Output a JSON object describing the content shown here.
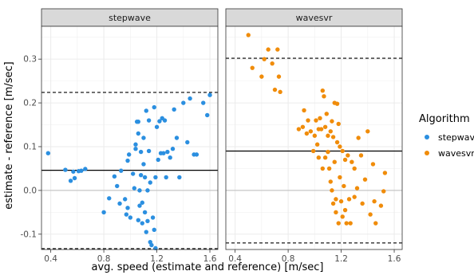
{
  "chart_data": {
    "type": "scatter",
    "panels": [
      "stepwave",
      "wavesvr"
    ],
    "xlabel": "avg. speed (estimate and reference) [m/sec]",
    "ylabel": "estimate - reference [m/sec]",
    "xlim": [
      0.33,
      1.66
    ],
    "ylim": [
      -0.135,
      0.375
    ],
    "xticks": [
      0.4,
      0.8,
      1.2,
      1.6
    ],
    "xtick_labels": [
      "0.4",
      "0.8",
      "1.2",
      "1.6"
    ],
    "yticks": [
      -0.1,
      0.0,
      0.1,
      0.2,
      0.3
    ],
    "ytick_labels": [
      "-0.1",
      "0.0",
      "0.1",
      "0.2",
      "0.3"
    ],
    "grid": true,
    "legend": {
      "title": "Algorithm",
      "placement": "right",
      "entries": [
        {
          "label": "stepwave",
          "color": "#2B8FE0"
        },
        {
          "label": "wavesvr",
          "color": "#F08C0A"
        }
      ]
    },
    "series": [
      {
        "name": "stepwave",
        "panel": 0,
        "color": "#2B8FE0",
        "mean": 0.046,
        "upper": 0.224,
        "lower": -0.133,
        "points": [
          [
            0.38,
            0.085
          ],
          [
            0.51,
            0.047
          ],
          [
            0.55,
            0.022
          ],
          [
            0.57,
            0.043
          ],
          [
            0.58,
            0.028
          ],
          [
            0.61,
            0.044
          ],
          [
            0.63,
            0.045
          ],
          [
            0.66,
            0.049
          ],
          [
            0.8,
            -0.05
          ],
          [
            0.84,
            -0.018
          ],
          [
            0.88,
            0.032
          ],
          [
            0.9,
            0.01
          ],
          [
            0.92,
            -0.03
          ],
          [
            0.93,
            0.045
          ],
          [
            0.96,
            -0.02
          ],
          [
            0.97,
            -0.055
          ],
          [
            0.98,
            -0.04
          ],
          [
            0.98,
            0.068
          ],
          [
            0.99,
            0.082
          ],
          [
            1.0,
            -0.062
          ],
          [
            1.02,
            0.038
          ],
          [
            1.03,
            0.005
          ],
          [
            1.04,
            0.095
          ],
          [
            1.04,
            0.105
          ],
          [
            1.05,
            0.157
          ],
          [
            1.06,
            0.157
          ],
          [
            1.06,
            0.13
          ],
          [
            1.06,
            -0.068
          ],
          [
            1.07,
            -0.035
          ],
          [
            1.07,
            0.0
          ],
          [
            1.08,
            0.035
          ],
          [
            1.08,
            0.088
          ],
          [
            1.09,
            -0.075
          ],
          [
            1.09,
            -0.028
          ],
          [
            1.1,
            0.12
          ],
          [
            1.1,
            0.06
          ],
          [
            1.11,
            0.03
          ],
          [
            1.11,
            -0.05
          ],
          [
            1.12,
            0.182
          ],
          [
            1.12,
            -0.095
          ],
          [
            1.13,
            -0.07
          ],
          [
            1.13,
            0.0
          ],
          [
            1.14,
            0.09
          ],
          [
            1.14,
            0.16
          ],
          [
            1.15,
            0.018
          ],
          [
            1.15,
            -0.118
          ],
          [
            1.16,
            -0.125
          ],
          [
            1.17,
            -0.062
          ],
          [
            1.18,
            0.19
          ],
          [
            1.18,
            -0.09
          ],
          [
            1.19,
            0.03
          ],
          [
            1.19,
            -0.132
          ],
          [
            1.2,
            0.145
          ],
          [
            1.21,
            0.07
          ],
          [
            1.22,
            0.158
          ],
          [
            1.23,
            0.085
          ],
          [
            1.24,
            0.165
          ],
          [
            1.25,
            0.085
          ],
          [
            1.26,
            0.16
          ],
          [
            1.27,
            0.03
          ],
          [
            1.28,
            0.088
          ],
          [
            1.3,
            0.075
          ],
          [
            1.32,
            0.095
          ],
          [
            1.33,
            0.185
          ],
          [
            1.35,
            0.12
          ],
          [
            1.37,
            0.03
          ],
          [
            1.4,
            0.2
          ],
          [
            1.43,
            0.11
          ],
          [
            1.45,
            0.21
          ],
          [
            1.48,
            0.082
          ],
          [
            1.5,
            0.082
          ],
          [
            1.55,
            0.2
          ],
          [
            1.58,
            0.172
          ],
          [
            1.6,
            0.218
          ]
        ]
      },
      {
        "name": "wavesvr",
        "panel": 1,
        "color": "#F08C0A",
        "mean": 0.09,
        "upper": 0.302,
        "lower": -0.12,
        "points": [
          [
            0.5,
            0.355
          ],
          [
            0.53,
            0.28
          ],
          [
            0.6,
            0.26
          ],
          [
            0.62,
            0.3
          ],
          [
            0.65,
            0.322
          ],
          [
            0.68,
            0.29
          ],
          [
            0.7,
            0.23
          ],
          [
            0.72,
            0.322
          ],
          [
            0.73,
            0.26
          ],
          [
            0.74,
            0.225
          ],
          [
            0.88,
            0.14
          ],
          [
            0.91,
            0.145
          ],
          [
            0.92,
            0.183
          ],
          [
            0.94,
            0.13
          ],
          [
            0.95,
            0.16
          ],
          [
            0.97,
            0.135
          ],
          [
            0.99,
            0.09
          ],
          [
            1.0,
            0.125
          ],
          [
            1.01,
            0.16
          ],
          [
            1.02,
            0.105
          ],
          [
            1.03,
            0.14
          ],
          [
            1.03,
            0.075
          ],
          [
            1.04,
            0.165
          ],
          [
            1.05,
            0.14
          ],
          [
            1.06,
            0.228
          ],
          [
            1.06,
            0.05
          ],
          [
            1.07,
            0.215
          ],
          [
            1.08,
            0.145
          ],
          [
            1.08,
            0.075
          ],
          [
            1.09,
            0.175
          ],
          [
            1.1,
            0.125
          ],
          [
            1.1,
            0.088
          ],
          [
            1.11,
            0.05
          ],
          [
            1.12,
            0.135
          ],
          [
            1.12,
            0.02
          ],
          [
            1.13,
            0.158
          ],
          [
            1.13,
            0.0
          ],
          [
            1.14,
            0.122
          ],
          [
            1.14,
            -0.03
          ],
          [
            1.15,
            0.2
          ],
          [
            1.15,
            0.065
          ],
          [
            1.16,
            -0.02
          ],
          [
            1.16,
            -0.05
          ],
          [
            1.17,
            0.198
          ],
          [
            1.17,
            0.11
          ],
          [
            1.18,
            0.152
          ],
          [
            1.18,
            -0.075
          ],
          [
            1.19,
            0.1
          ],
          [
            1.19,
            0.03
          ],
          [
            1.2,
            -0.025
          ],
          [
            1.21,
            0.09
          ],
          [
            1.21,
            -0.06
          ],
          [
            1.22,
            0.01
          ],
          [
            1.23,
            0.07
          ],
          [
            1.23,
            -0.045
          ],
          [
            1.24,
            -0.075
          ],
          [
            1.25,
            0.08
          ],
          [
            1.26,
            -0.02
          ],
          [
            1.27,
            -0.075
          ],
          [
            1.28,
            0.065
          ],
          [
            1.3,
            0.05
          ],
          [
            1.3,
            -0.015
          ],
          [
            1.32,
            0.005
          ],
          [
            1.33,
            0.12
          ],
          [
            1.35,
            0.08
          ],
          [
            1.36,
            -0.03
          ],
          [
            1.38,
            0.025
          ],
          [
            1.4,
            0.135
          ],
          [
            1.42,
            -0.055
          ],
          [
            1.44,
            0.06
          ],
          [
            1.45,
            -0.025
          ],
          [
            1.46,
            -0.075
          ],
          [
            1.5,
            -0.035
          ],
          [
            1.52,
            -0.002
          ],
          [
            1.53,
            0.04
          ]
        ]
      }
    ]
  }
}
